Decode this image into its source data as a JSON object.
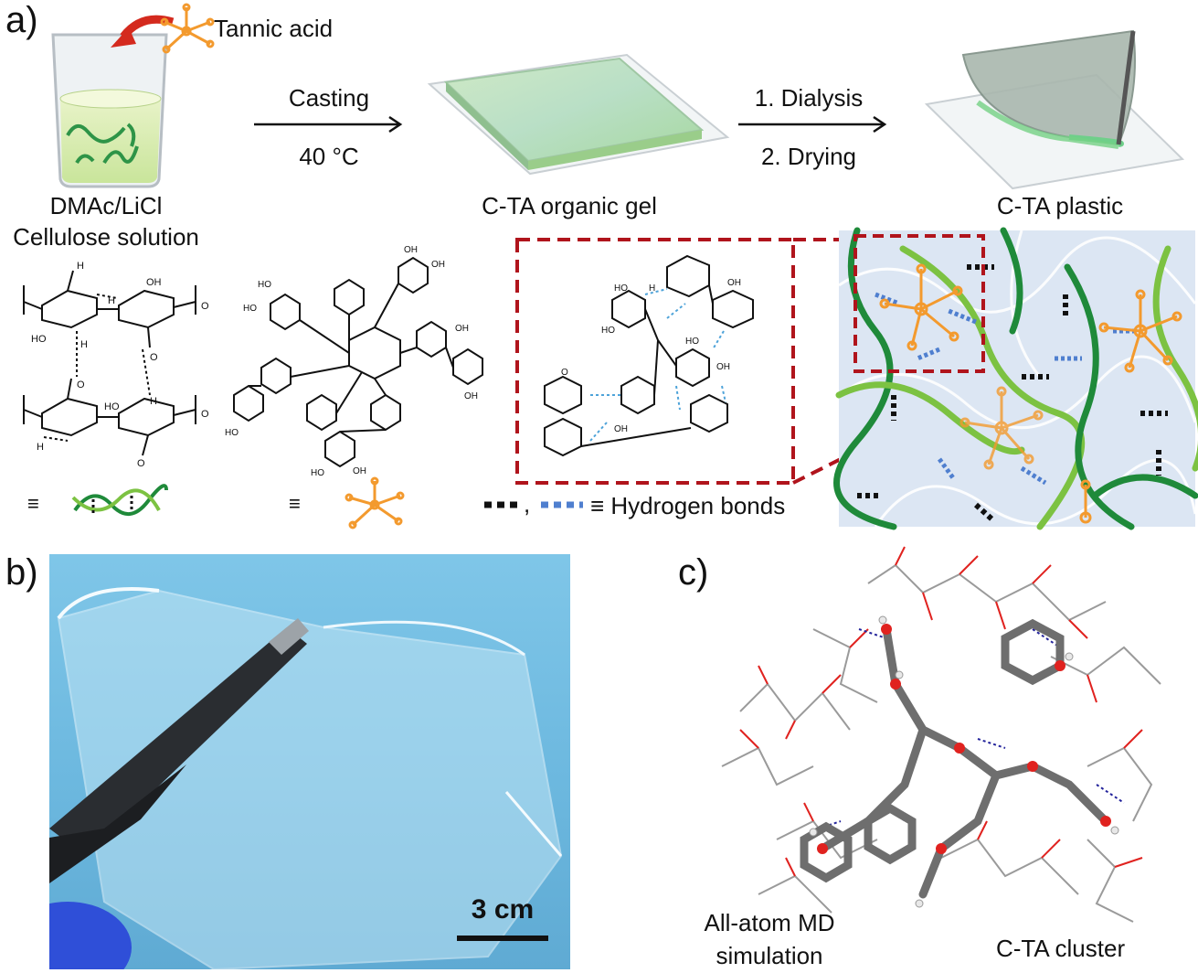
{
  "panel_a": {
    "letter": "a)",
    "reagent": "Tannic acid",
    "step1_top": "Casting",
    "step1_bottom": "40 °C",
    "step2_top": "1. Dialysis",
    "step2_bottom": "2. Drying",
    "start_label_line1": "DMAc/LiCl",
    "start_label_line2": "Cellulose solution",
    "gel_label": "C-TA organic gel",
    "plastic_label": "C-TA plastic",
    "equiv_symbol": "≡",
    "legend_sep": ",",
    "legend_text": "≡ Hydrogen bonds",
    "colors": {
      "cellulose_dark": "#1f8a3a",
      "cellulose_light": "#7cc242",
      "tannic": "#f39a2e",
      "hbond_blue": "#4f7fcf",
      "zoom_red": "#b0141c"
    }
  },
  "panel_b": {
    "letter": "b)",
    "scale_label": "3 cm"
  },
  "panel_c": {
    "letter": "c)",
    "left_label_line1": "All-atom MD",
    "left_label_line2": "simulation",
    "right_label": "C-TA cluster"
  }
}
